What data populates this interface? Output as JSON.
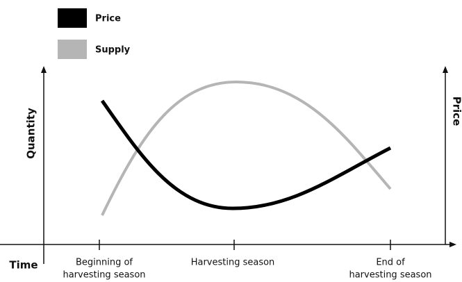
{
  "legend": {
    "items": [
      {
        "label": "Price"
      },
      {
        "label": "Supply"
      }
    ]
  },
  "axes": {
    "left_label": "Quantity",
    "right_label": "Price",
    "x_label": "Time"
  },
  "x_labels": [
    [
      "Beginning of",
      "harvesting season"
    ],
    [
      "Harvesting season"
    ],
    [
      "End of",
      "harvesting season"
    ]
  ]
}
